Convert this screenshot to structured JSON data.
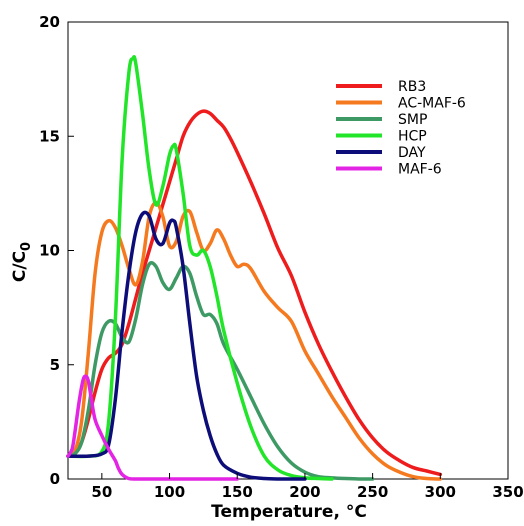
{
  "chart_data": {
    "type": "line",
    "title": "",
    "xlabel": "Temperature, °C",
    "ylabel_main": "C/C",
    "ylabel_sub": "0",
    "xlim": [
      25,
      350
    ],
    "ylim": [
      0,
      20
    ],
    "xticks": [
      50,
      100,
      150,
      200,
      250,
      300,
      350
    ],
    "yticks": [
      0,
      5,
      10,
      15,
      20
    ],
    "grid": false,
    "legend_position": "top-right",
    "series": [
      {
        "name": "RB3",
        "color": "#ee1c1c",
        "x": [
          25,
          30,
          35,
          40,
          45,
          50,
          55,
          60,
          65,
          70,
          75,
          80,
          85,
          90,
          95,
          100,
          105,
          110,
          115,
          120,
          125,
          130,
          135,
          140,
          145,
          150,
          160,
          170,
          180,
          190,
          200,
          210,
          220,
          230,
          240,
          250,
          260,
          270,
          280,
          290,
          300
        ],
        "y": [
          1.0,
          1.1,
          1.6,
          2.6,
          3.8,
          4.8,
          5.3,
          5.5,
          5.9,
          6.8,
          7.9,
          9.0,
          10.0,
          11.0,
          12.0,
          13.0,
          14.0,
          15.0,
          15.6,
          15.95,
          16.1,
          16.0,
          15.7,
          15.4,
          14.9,
          14.3,
          13.0,
          11.6,
          10.1,
          8.9,
          7.3,
          5.9,
          4.7,
          3.6,
          2.6,
          1.8,
          1.2,
          0.8,
          0.5,
          0.35,
          0.2
        ]
      },
      {
        "name": "AC-MAF-6",
        "color": "#f57a1f",
        "x": [
          25,
          30,
          35,
          40,
          45,
          50,
          55,
          60,
          65,
          70,
          75,
          80,
          85,
          90,
          95,
          100,
          105,
          110,
          115,
          120,
          125,
          130,
          135,
          140,
          145,
          150,
          155,
          160,
          170,
          180,
          190,
          200,
          210,
          220,
          230,
          240,
          250,
          260,
          270,
          280,
          290,
          300
        ],
        "y": [
          1.0,
          1.2,
          2.5,
          5.5,
          9.0,
          10.8,
          11.3,
          11.0,
          10.2,
          9.2,
          8.5,
          9.5,
          11.5,
          12.1,
          11.5,
          10.2,
          10.4,
          11.5,
          11.7,
          10.8,
          10.0,
          10.3,
          10.9,
          10.5,
          9.8,
          9.3,
          9.4,
          9.2,
          8.2,
          7.5,
          6.9,
          5.6,
          4.6,
          3.6,
          2.7,
          1.8,
          1.1,
          0.6,
          0.3,
          0.1,
          0.02,
          0.0
        ]
      },
      {
        "name": "SMP",
        "color": "#3e9a64",
        "x": [
          25,
          30,
          35,
          40,
          45,
          50,
          55,
          60,
          65,
          70,
          75,
          80,
          85,
          90,
          95,
          100,
          105,
          110,
          115,
          120,
          125,
          130,
          135,
          140,
          150,
          160,
          170,
          180,
          190,
          200,
          210,
          220,
          230,
          240,
          250
        ],
        "y": [
          1.0,
          1.1,
          1.6,
          3.0,
          5.0,
          6.4,
          6.9,
          6.8,
          6.2,
          6.0,
          7.0,
          8.5,
          9.4,
          9.3,
          8.6,
          8.3,
          8.8,
          9.3,
          9.0,
          8.0,
          7.2,
          7.2,
          6.8,
          5.9,
          4.8,
          3.6,
          2.4,
          1.4,
          0.7,
          0.3,
          0.1,
          0.05,
          0.02,
          0.0,
          0.0
        ]
      },
      {
        "name": "HCP",
        "color": "#22e52a",
        "x": [
          25,
          40,
          50,
          55,
          60,
          65,
          70,
          73,
          75,
          80,
          85,
          90,
          95,
          100,
          103,
          105,
          110,
          115,
          120,
          125,
          130,
          135,
          140,
          150,
          160,
          170,
          180,
          190,
          200,
          210,
          220
        ],
        "y": [
          1.0,
          1.0,
          1.2,
          2.5,
          7.0,
          14.0,
          17.8,
          18.4,
          18.2,
          16.0,
          13.5,
          12.0,
          12.8,
          14.2,
          14.6,
          14.4,
          12.5,
          10.2,
          9.8,
          10.0,
          9.3,
          8.0,
          6.5,
          4.2,
          2.3,
          1.0,
          0.4,
          0.15,
          0.05,
          0.02,
          0.0
        ]
      },
      {
        "name": "DAY",
        "color": "#0d0d7a",
        "x": [
          25,
          40,
          50,
          55,
          60,
          65,
          70,
          75,
          80,
          85,
          90,
          95,
          100,
          103,
          105,
          110,
          115,
          120,
          125,
          130,
          135,
          140,
          150,
          160,
          170,
          180,
          190,
          200
        ],
        "y": [
          1.0,
          1.0,
          1.1,
          1.5,
          3.5,
          6.5,
          9.0,
          10.8,
          11.6,
          11.5,
          10.5,
          10.3,
          11.2,
          11.3,
          11.0,
          9.3,
          6.8,
          4.5,
          3.0,
          1.9,
          1.1,
          0.6,
          0.25,
          0.08,
          0.02,
          0.0,
          0.0,
          0.0
        ]
      },
      {
        "name": "MAF-6",
        "color": "#e424e4",
        "x": [
          25,
          28,
          30,
          33,
          36,
          38,
          40,
          42,
          45,
          50,
          55,
          60,
          62,
          65,
          70,
          80,
          90,
          100,
          120,
          150
        ],
        "y": [
          1.0,
          1.3,
          2.0,
          3.3,
          4.3,
          4.5,
          4.3,
          3.6,
          2.6,
          1.9,
          1.3,
          0.8,
          0.5,
          0.2,
          0.02,
          0.0,
          0.0,
          0.0,
          0.0,
          0.0
        ]
      }
    ]
  }
}
